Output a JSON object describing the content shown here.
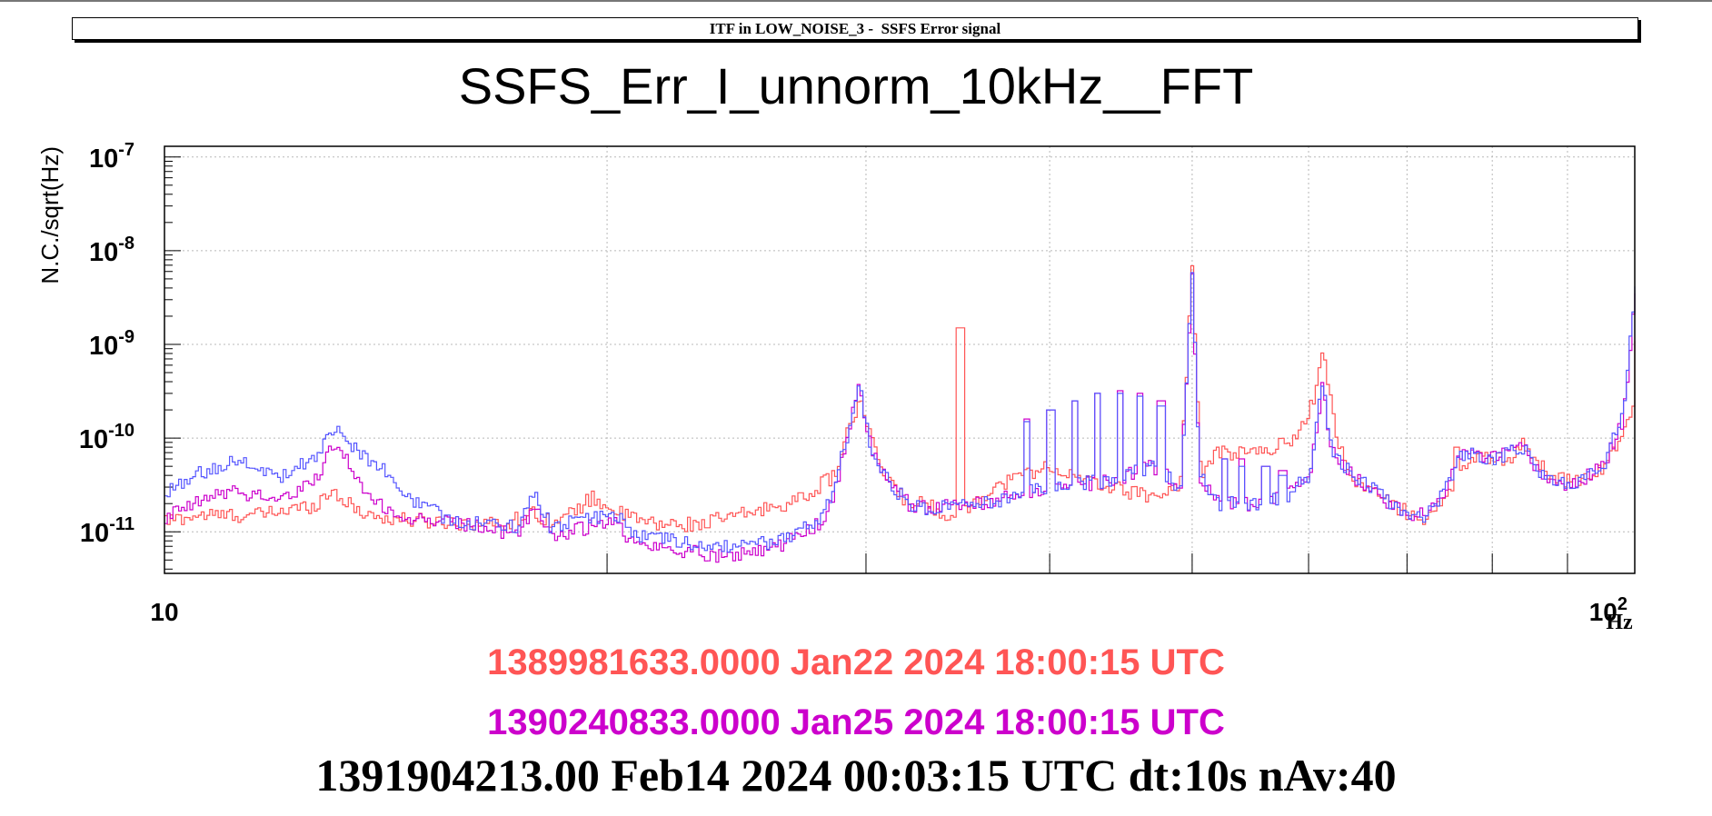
{
  "banner": "ITF in LOW_NOISE_3 -  SSFS Error signal",
  "chart_data": {
    "type": "line",
    "title": "SSFS_Err_I_unnorm_10kHz__FFT",
    "ylabel": "N.C./sqrt(Hz)",
    "xlabel": "Hz",
    "x_scale": "log",
    "y_scale": "log",
    "xlim": [
      10,
      100
    ],
    "ylim": [
      3.6e-12,
      1.3e-07
    ],
    "grid": true,
    "x_tick_labels": [
      {
        "value": 10,
        "base": "10",
        "exp": ""
      },
      {
        "value": 100,
        "base": "10",
        "exp": "2"
      }
    ],
    "y_tick_labels": [
      {
        "value": 1e-11,
        "base": "10",
        "exp": "-11"
      },
      {
        "value": 1e-10,
        "base": "10",
        "exp": "-10"
      },
      {
        "value": 1e-09,
        "base": "10",
        "exp": "-9"
      },
      {
        "value": 1e-08,
        "base": "10",
        "exp": "-8"
      },
      {
        "value": 1e-07,
        "base": "10",
        "exp": "-7"
      }
    ],
    "series": [
      {
        "color": "#ff5555",
        "anchors": [
          [
            10,
            1.3e-11
          ],
          [
            10.5,
            1.5e-11
          ],
          [
            11.5,
            1.5e-11
          ],
          [
            12.6,
            1.9e-11
          ],
          [
            13,
            2.8e-11
          ],
          [
            13.4,
            1.8e-11
          ],
          [
            14,
            1.4e-11
          ],
          [
            15,
            1.3e-11
          ],
          [
            16,
            1.25e-11
          ],
          [
            17,
            1.2e-11
          ],
          [
            17.7,
            1.6e-11
          ],
          [
            18.5,
            1.25e-11
          ],
          [
            19.5,
            2.3e-11
          ],
          [
            20.5,
            1.5e-11
          ],
          [
            21.5,
            1.2e-11
          ],
          [
            23,
            1.2e-11
          ],
          [
            25,
            1.6e-11
          ],
          [
            27,
            2.2e-11
          ],
          [
            28.5,
            4e-11
          ],
          [
            29.3,
            1.6e-10
          ],
          [
            29.7,
            2.4e-10
          ],
          [
            30.2,
            9e-11
          ],
          [
            31,
            3.5e-11
          ],
          [
            32,
            2e-11
          ],
          [
            33,
            2e-11
          ],
          [
            34,
            1.5e-11
          ],
          [
            35,
            1.7e-11
          ],
          [
            36,
            2.5e-11
          ],
          [
            38,
            4e-11
          ],
          [
            40,
            5e-11
          ],
          [
            42,
            3.5e-11
          ],
          [
            44,
            3e-11
          ],
          [
            46,
            2.5e-11
          ],
          [
            48,
            2.5e-11
          ],
          [
            49,
            3.5e-11
          ],
          [
            49.9,
            6.5e-09
          ],
          [
            50.6,
            4e-11
          ],
          [
            52,
            7e-11
          ],
          [
            55,
            7e-11
          ],
          [
            57,
            8e-11
          ],
          [
            59,
            1.1e-10
          ],
          [
            60.5,
            3e-10
          ],
          [
            61.3,
            8e-10
          ],
          [
            62.5,
            1.2e-10
          ],
          [
            64,
            3.5e-11
          ],
          [
            66,
            3e-11
          ],
          [
            68,
            2e-11
          ],
          [
            70,
            1.6e-11
          ],
          [
            72,
            1.4e-11
          ],
          [
            74,
            2e-11
          ],
          [
            76,
            5e-11
          ],
          [
            78,
            6e-11
          ],
          [
            80,
            6e-11
          ],
          [
            82,
            6e-11
          ],
          [
            84,
            9e-11
          ],
          [
            86,
            5e-11
          ],
          [
            88,
            4e-11
          ],
          [
            90,
            3.5e-11
          ],
          [
            92,
            3.6e-11
          ],
          [
            95,
            5e-11
          ],
          [
            98,
            1e-10
          ],
          [
            99.5,
            2e-10
          ],
          [
            100,
            1.3e-09
          ]
        ],
        "peaks": [
          [
            34.7,
            1.5e-09
          ],
          [
            64.8,
            3e-11
          ],
          [
            65.5,
            2.5e-11
          ],
          [
            75.5,
            8e-11
          ]
        ]
      },
      {
        "color": "#cc00cc",
        "anchors": [
          [
            10,
            1.4e-11
          ],
          [
            10.5,
            2e-11
          ],
          [
            11,
            2.7e-11
          ],
          [
            11.5,
            2.5e-11
          ],
          [
            12,
            2.2e-11
          ],
          [
            12.6,
            3.4e-11
          ],
          [
            13,
            8e-11
          ],
          [
            13.3,
            6e-11
          ],
          [
            13.7,
            2.4e-11
          ],
          [
            14.5,
            1.4e-11
          ],
          [
            15.5,
            1.3e-11
          ],
          [
            16.5,
            1.1e-11
          ],
          [
            17.3,
            9e-12
          ],
          [
            17.8,
            1.9e-11
          ],
          [
            18.3,
            9e-12
          ],
          [
            19.3,
            1.1e-11
          ],
          [
            20.2,
            1.3e-11
          ],
          [
            20.8,
            7.5e-12
          ],
          [
            22,
            6.5e-12
          ],
          [
            23,
            6e-12
          ],
          [
            24,
            5.5e-12
          ],
          [
            25,
            6e-12
          ],
          [
            26,
            7e-12
          ],
          [
            27,
            9e-12
          ],
          [
            28,
            1.3e-11
          ],
          [
            28.5,
            2.5e-11
          ],
          [
            29.2,
            1.3e-10
          ],
          [
            29.6,
            3.5e-10
          ],
          [
            30.1,
            9e-11
          ],
          [
            31,
            3.5e-11
          ],
          [
            32,
            2e-11
          ],
          [
            33,
            1.8e-11
          ],
          [
            36,
            2e-11
          ],
          [
            40,
            3e-11
          ],
          [
            44,
            3.5e-11
          ],
          [
            47,
            5e-11
          ],
          [
            49,
            3e-11
          ],
          [
            49.9,
            5e-09
          ],
          [
            50.5,
            4e-11
          ],
          [
            52,
            2e-11
          ],
          [
            56,
            2e-11
          ],
          [
            58,
            2.5e-11
          ],
          [
            60,
            4e-11
          ],
          [
            61.2,
            3.5e-10
          ],
          [
            62,
            8e-11
          ],
          [
            64,
            4e-11
          ],
          [
            66,
            3e-11
          ],
          [
            68,
            2e-11
          ],
          [
            70,
            1.5e-11
          ],
          [
            72,
            1.5e-11
          ],
          [
            74,
            2.5e-11
          ],
          [
            76,
            7e-11
          ],
          [
            80,
            6e-11
          ],
          [
            84,
            8e-11
          ],
          [
            86,
            4e-11
          ],
          [
            90,
            3e-11
          ],
          [
            95,
            5e-11
          ],
          [
            98,
            1.5e-10
          ],
          [
            100,
            3.5e-09
          ]
        ],
        "peaks": [
          [
            34.7,
            1.4e-11
          ],
          [
            38.5,
            1.6e-10
          ],
          [
            40,
            2e-10
          ],
          [
            41.5,
            2.5e-10
          ],
          [
            43,
            3e-10
          ],
          [
            44.5,
            3.2e-10
          ],
          [
            46,
            3e-10
          ],
          [
            47.5,
            2.5e-10
          ],
          [
            52.5,
            6e-11
          ],
          [
            54,
            6e-11
          ],
          [
            56,
            5e-11
          ],
          [
            57.5,
            4.5e-11
          ]
        ]
      },
      {
        "color": "#5555ff",
        "anchors": [
          [
            10,
            2.5e-11
          ],
          [
            10.5,
            4e-11
          ],
          [
            11,
            5.5e-11
          ],
          [
            11.5,
            5e-11
          ],
          [
            12,
            4e-11
          ],
          [
            12.6,
            6e-11
          ],
          [
            13,
            1.3e-10
          ],
          [
            13.4,
            8e-11
          ],
          [
            14,
            5e-11
          ],
          [
            14.5,
            2.5e-11
          ],
          [
            15.5,
            1.4e-11
          ],
          [
            16.5,
            1.2e-11
          ],
          [
            17.3,
            1.1e-11
          ],
          [
            17.8,
            2.5e-11
          ],
          [
            18.3,
            1.1e-11
          ],
          [
            19.3,
            1.4e-11
          ],
          [
            20.2,
            1.5e-11
          ],
          [
            21,
            9e-12
          ],
          [
            22,
            8e-12
          ],
          [
            23,
            7e-12
          ],
          [
            24,
            7e-12
          ],
          [
            25,
            7e-12
          ],
          [
            26,
            8e-12
          ],
          [
            27,
            1e-11
          ],
          [
            28,
            1.5e-11
          ],
          [
            28.5,
            3e-11
          ],
          [
            29.2,
            1.4e-10
          ],
          [
            29.6,
            3.8e-10
          ],
          [
            30.1,
            9e-11
          ],
          [
            31,
            3.5e-11
          ],
          [
            32,
            2e-11
          ],
          [
            33,
            1.8e-11
          ],
          [
            36,
            2e-11
          ],
          [
            40,
            3e-11
          ],
          [
            44,
            3.5e-11
          ],
          [
            47,
            5e-11
          ],
          [
            49,
            3e-11
          ],
          [
            49.9,
            5.5e-09
          ],
          [
            50.5,
            4e-11
          ],
          [
            52,
            2e-11
          ],
          [
            56,
            2e-11
          ],
          [
            58,
            2.5e-11
          ],
          [
            60,
            4e-11
          ],
          [
            61.2,
            4e-10
          ],
          [
            62,
            8e-11
          ],
          [
            64,
            4e-11
          ],
          [
            66,
            3e-11
          ],
          [
            68,
            2e-11
          ],
          [
            70,
            1.5e-11
          ],
          [
            72,
            1.5e-11
          ],
          [
            74,
            2.5e-11
          ],
          [
            76,
            7e-11
          ],
          [
            80,
            6e-11
          ],
          [
            84,
            8e-11
          ],
          [
            86,
            4e-11
          ],
          [
            90,
            3e-11
          ],
          [
            95,
            5e-11
          ],
          [
            98,
            2e-10
          ],
          [
            100,
            4e-09
          ]
        ],
        "peaks": [
          [
            34.7,
            1.5e-11
          ],
          [
            38.5,
            1.5e-10
          ],
          [
            40,
            2e-10
          ],
          [
            41.5,
            2.5e-10
          ],
          [
            43,
            3e-10
          ],
          [
            44.5,
            3e-10
          ],
          [
            46,
            2.8e-10
          ],
          [
            47.5,
            2.2e-10
          ],
          [
            52.5,
            6e-11
          ],
          [
            54,
            5e-11
          ],
          [
            56,
            5e-11
          ],
          [
            57.5,
            4e-11
          ]
        ]
      }
    ]
  },
  "timestamps": [
    {
      "text": "1389981633.0000 Jan22 2024 18:00:15 UTC",
      "color": "#ff5555"
    },
    {
      "text": "1390240833.0000 Jan25 2024 18:00:15 UTC",
      "color": "#cc00cc"
    },
    {
      "text": "1391904213.00 Feb14 2024 00:03:15 UTC dt:10s nAv:40",
      "color": "#000000"
    }
  ]
}
